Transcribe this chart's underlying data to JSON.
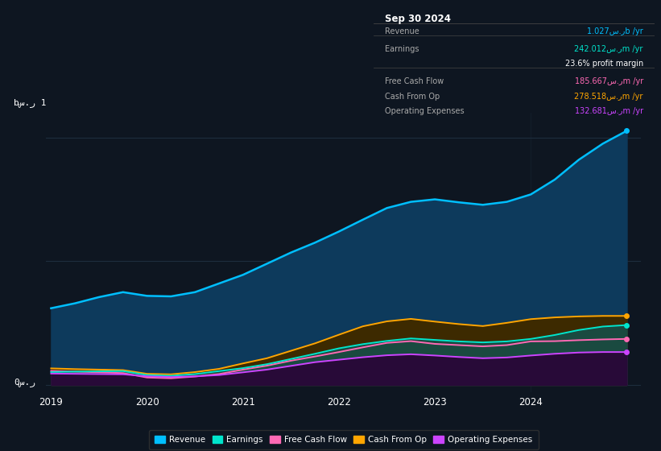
{
  "bg_color": "#0e1621",
  "plot_bg_color": "#0e1621",
  "chart_fill_color": "#0a2240",
  "x_years": [
    2019.0,
    2019.25,
    2019.5,
    2019.75,
    2020.0,
    2020.25,
    2020.5,
    2020.75,
    2021.0,
    2021.25,
    2021.5,
    2021.75,
    2022.0,
    2022.25,
    2022.5,
    2022.75,
    2023.0,
    2023.25,
    2023.5,
    2023.75,
    2024.0,
    2024.25,
    2024.5,
    2024.75,
    2025.0
  ],
  "revenue": [
    310,
    330,
    355,
    375,
    360,
    358,
    375,
    410,
    445,
    490,
    535,
    575,
    620,
    668,
    715,
    740,
    750,
    738,
    728,
    740,
    770,
    830,
    910,
    975,
    1027
  ],
  "earnings": [
    52,
    54,
    55,
    56,
    40,
    37,
    44,
    56,
    68,
    84,
    105,
    126,
    148,
    165,
    178,
    188,
    182,
    176,
    172,
    176,
    186,
    202,
    222,
    236,
    242
  ],
  "free_cash_flow": [
    57,
    54,
    51,
    48,
    30,
    27,
    34,
    44,
    62,
    78,
    98,
    115,
    133,
    152,
    170,
    177,
    166,
    161,
    156,
    161,
    176,
    177,
    181,
    184,
    186
  ],
  "cash_from_op": [
    67,
    64,
    62,
    60,
    45,
    43,
    52,
    65,
    87,
    108,
    138,
    168,
    203,
    237,
    257,
    267,
    256,
    246,
    238,
    251,
    266,
    273,
    277,
    279,
    279
  ],
  "operating_expenses": [
    46,
    45,
    44,
    43,
    35,
    32,
    35,
    40,
    51,
    62,
    77,
    92,
    102,
    112,
    120,
    124,
    119,
    113,
    108,
    111,
    119,
    126,
    131,
    133,
    133
  ],
  "revenue_color": "#00bfff",
  "earnings_color": "#00e5cc",
  "fcf_color": "#ff69b4",
  "cashop_color": "#ffa500",
  "opex_color": "#cc44ff",
  "revenue_fill": "#0d3a5c",
  "earnings_fill": "#1a4a40",
  "fcf_fill": "#4a2030",
  "cashop_fill": "#3d2a00",
  "opex_fill": "#280a38",
  "grid_line_color": "#1e2d3d",
  "ylabel_top": "bس.ر 1",
  "ylabel_bottom": "0س.ر",
  "info_title": "Sep 30 2024",
  "info_rows": [
    {
      "label": "Revenue",
      "value": "1.027س.رb /yr",
      "color": "#00bfff",
      "separator_after": true
    },
    {
      "label": "Earnings",
      "value": "242.012س.رm /yr",
      "color": "#00e5cc",
      "separator_after": false
    },
    {
      "label": "",
      "value": "23.6% profit margin",
      "color": "#ffffff",
      "separator_after": true
    },
    {
      "label": "Free Cash Flow",
      "value": "185.667س.رm /yr",
      "color": "#ff69b4",
      "separator_after": false
    },
    {
      "label": "Cash From Op",
      "value": "278.518س.رm /yr",
      "color": "#ffa500",
      "separator_after": false
    },
    {
      "label": "Operating Expenses",
      "value": "132.681س.رm /yr",
      "color": "#cc44ff",
      "separator_after": false
    }
  ],
  "legend_labels": [
    "Revenue",
    "Earnings",
    "Free Cash Flow",
    "Cash From Op",
    "Operating Expenses"
  ],
  "legend_colors": [
    "#00bfff",
    "#00e5cc",
    "#ff69b4",
    "#ffa500",
    "#cc44ff"
  ],
  "ylim_max": 1100,
  "ylim_min": -30
}
